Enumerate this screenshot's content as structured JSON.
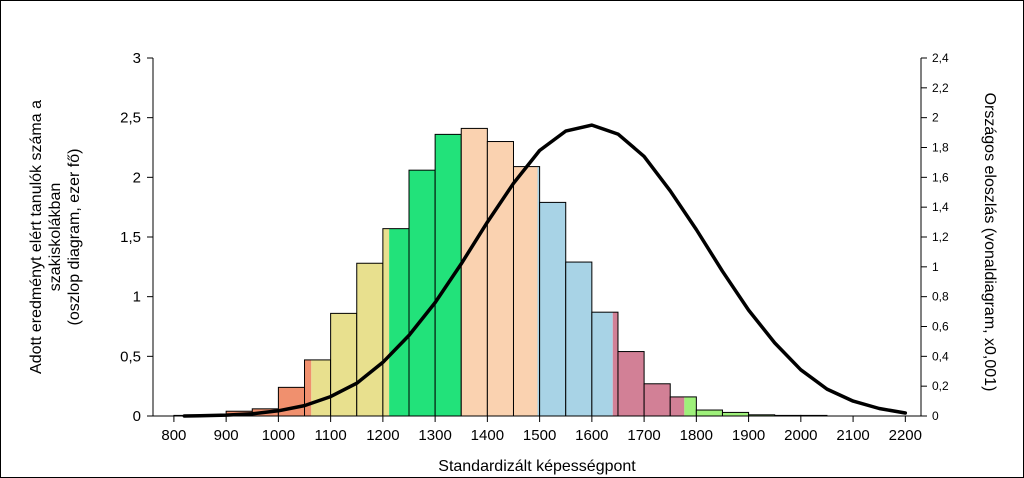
{
  "chart_data": {
    "type": "bar",
    "xlabel": "Standardizált képességpont",
    "ylabel_lines": [
      "Adott eredményt elért tanulók száma a",
      "szakiskolákban",
      "(oszlop diagram, ezer fő)"
    ],
    "y2label": "Országos eloszlás (vonaldiagram, x0,001)",
    "xlim": [
      760,
      2230
    ],
    "ylim": [
      0,
      3
    ],
    "y2lim": [
      0,
      2.4
    ],
    "grid": false,
    "legend": "none",
    "x_ticks": [
      800,
      900,
      1000,
      1100,
      1200,
      1300,
      1400,
      1500,
      1600,
      1700,
      1800,
      1900,
      2000,
      2100,
      2200
    ],
    "x_tick_labels": [
      "800",
      "900",
      "1000",
      "1100",
      "1200",
      "1300",
      "1400",
      "1500",
      "1600",
      "1700",
      "1800",
      "1900",
      "2000",
      "2100",
      "2200"
    ],
    "y_ticks": [
      0,
      0.5,
      1,
      1.5,
      2,
      2.5,
      3
    ],
    "y_tick_labels": [
      "0",
      "0,5",
      "1",
      "1,5",
      "2",
      "2,5",
      "3"
    ],
    "y2_ticks": [
      0,
      0.2,
      0.4,
      0.6,
      0.8,
      1,
      1.2,
      1.4,
      1.6,
      1.8,
      2,
      2.2,
      2.4
    ],
    "y2_tick_labels": [
      "0",
      "0,2",
      "0,4",
      "0,6",
      "0,8",
      "1",
      "1,2",
      "1,4",
      "1,6",
      "1,8",
      "2",
      "2,2",
      "2,4"
    ],
    "bar_width": 50,
    "bar_centers": [
      825,
      875,
      925,
      975,
      1025,
      1075,
      1125,
      1175,
      1225,
      1275,
      1325,
      1375,
      1425,
      1475,
      1525,
      1575,
      1625,
      1675,
      1725,
      1775,
      1825,
      1875,
      1925,
      1975,
      2025
    ],
    "bar_values": [
      0.005,
      0.01,
      0.04,
      0.06,
      0.24,
      0.47,
      0.86,
      1.28,
      1.57,
      2.06,
      2.36,
      2.41,
      2.3,
      2.09,
      1.79,
      1.29,
      0.87,
      0.54,
      0.27,
      0.16,
      0.05,
      0.03,
      0.01,
      0.005,
      0.005
    ],
    "bands": [
      {
        "from": 760,
        "to": 1063,
        "color": "#f0906e"
      },
      {
        "from": 1063,
        "to": 1212,
        "color": "#e8e08e"
      },
      {
        "from": 1212,
        "to": 1350,
        "color": "#22e27a"
      },
      {
        "from": 1350,
        "to": 1496,
        "color": "#fad2b0"
      },
      {
        "from": 1496,
        "to": 1640,
        "color": "#a8d3e6"
      },
      {
        "from": 1640,
        "to": 1777,
        "color": "#d28096"
      },
      {
        "from": 1777,
        "to": 2230,
        "color": "#9ef07a"
      }
    ],
    "line": {
      "name": "Országos eloszlás",
      "x": [
        820,
        850,
        900,
        950,
        1000,
        1050,
        1100,
        1150,
        1200,
        1250,
        1300,
        1350,
        1400,
        1450,
        1500,
        1550,
        1600,
        1650,
        1700,
        1750,
        1800,
        1850,
        1900,
        1950,
        2000,
        2050,
        2100,
        2150,
        2200
      ],
      "y": [
        0.0,
        0.002,
        0.006,
        0.015,
        0.035,
        0.07,
        0.13,
        0.22,
        0.36,
        0.54,
        0.76,
        1.02,
        1.3,
        1.56,
        1.78,
        1.91,
        1.95,
        1.89,
        1.74,
        1.51,
        1.25,
        0.97,
        0.71,
        0.49,
        0.31,
        0.18,
        0.1,
        0.05,
        0.02
      ]
    }
  }
}
